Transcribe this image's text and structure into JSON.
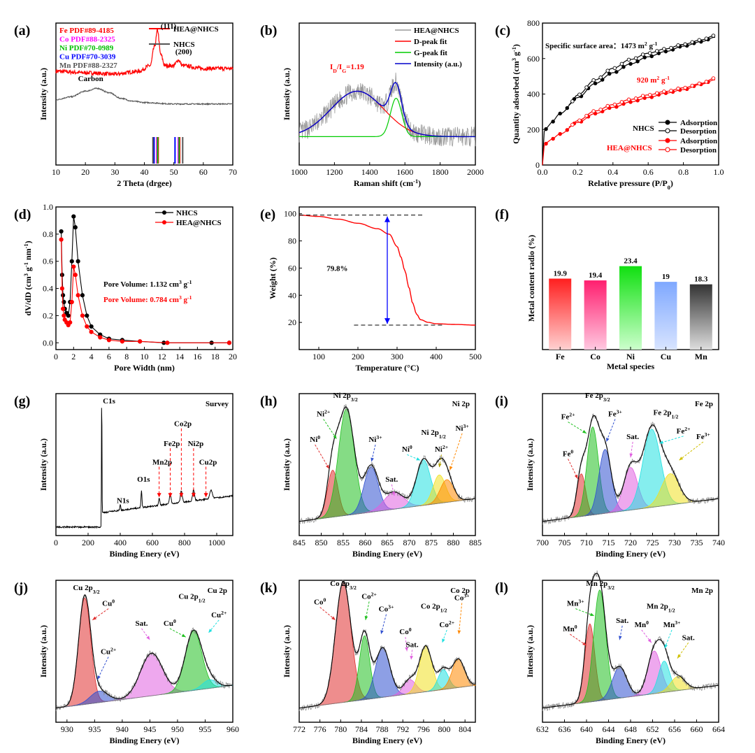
{
  "chart_data": [
    {
      "id": "a",
      "type": "line",
      "panel_label": "(a)",
      "xlabel": "2 Theta (drgee)",
      "ylabel": "Intensity (a.u.)",
      "xlim": [
        10,
        70
      ],
      "xticks": [
        "10",
        "20",
        "30",
        "40",
        "50",
        "60",
        "70"
      ],
      "series": [
        {
          "name": "HEA@NHCS",
          "color": "#ff0000",
          "x": [
            10,
            20,
            30,
            38,
            42,
            43.5,
            44.5,
            45.5,
            47,
            50,
            51.5,
            53,
            60,
            70
          ],
          "y": [
            0.66,
            0.65,
            0.64,
            0.66,
            0.7,
            0.84,
            0.95,
            0.78,
            0.7,
            0.7,
            0.74,
            0.7,
            0.68,
            0.68
          ]
        },
        {
          "name": "NHCS",
          "color": "#555555",
          "x": [
            10,
            15,
            20,
            24,
            28,
            32,
            36,
            40,
            50,
            60,
            70
          ],
          "y": [
            0.46,
            0.48,
            0.52,
            0.54,
            0.51,
            0.47,
            0.45,
            0.44,
            0.43,
            0.43,
            0.43
          ]
        }
      ],
      "reference_lines": [
        {
          "label": "Fe PDF#89-4185",
          "color": "#ff0000",
          "x": [
            44.7,
            52.0
          ]
        },
        {
          "label": "Co PDF#88-2325",
          "color": "#ff00ff",
          "x": [
            44.2,
            51.5
          ]
        },
        {
          "label": "Ni PDF#70-0989",
          "color": "#00c000",
          "x": [
            44.5,
            51.8
          ]
        },
        {
          "label": "Cu PDF#70-3039",
          "color": "#0000ff",
          "x": [
            43.3,
            50.4
          ]
        },
        {
          "label": "Mn PDF#88-2327",
          "color": "#555555",
          "x": [
            42.9,
            53.0
          ]
        }
      ],
      "annotations": [
        "(111)",
        "(200)",
        "Carbon"
      ]
    },
    {
      "id": "b",
      "type": "line",
      "panel_label": "(b)",
      "xlabel": "Raman shift (cm⁻¹)",
      "ylabel": "Intensity (a.u.)",
      "xlim": [
        1000,
        2000
      ],
      "xticks": [
        "1000",
        "1200",
        "1400",
        "1600",
        "1800",
        "2000"
      ],
      "series": [
        {
          "name": "HEA@NHCS",
          "color": "#9a9a9a"
        },
        {
          "name": "D-peak fit",
          "color": "#ff0000"
        },
        {
          "name": "G-peak fit",
          "color": "#00cc00"
        },
        {
          "name": "Intensity (a.u.)",
          "color": "#0000cc"
        }
      ],
      "D_peak": {
        "center": 1330,
        "width": 150
      },
      "G_peak": {
        "center": 1550,
        "width": 32
      },
      "annotation": "I_D/I_G=1.19"
    },
    {
      "id": "c",
      "type": "line",
      "panel_label": "(c)",
      "xlabel": "Relative pressure (P/P₀)",
      "ylabel": "Quantity adsorbed (cm³ g⁻¹)",
      "xlim": [
        0,
        1.0
      ],
      "ylim": [
        0,
        800
      ],
      "xticks": [
        "0.0",
        "0.2",
        "0.4",
        "0.6",
        "0.8",
        "1.0"
      ],
      "yticks": [
        "0",
        "200",
        "400",
        "600",
        "800"
      ],
      "series": [
        {
          "name": "Adsorption",
          "group": "NHCS",
          "color": "#000000",
          "x": [
            0,
            0.01,
            0.03,
            0.05,
            0.1,
            0.2,
            0.3,
            0.4,
            0.5,
            0.6,
            0.7,
            0.8,
            0.9,
            0.98
          ],
          "y": [
            0,
            190,
            215,
            240,
            290,
            380,
            460,
            520,
            570,
            610,
            640,
            670,
            695,
            720
          ]
        },
        {
          "name": "Desorption",
          "group": "NHCS",
          "color": "#000000",
          "x": [
            0.98,
            0.9,
            0.8,
            0.7,
            0.6,
            0.5,
            0.4,
            0.3,
            0.2,
            0.15
          ],
          "y": [
            730,
            705,
            680,
            655,
            630,
            595,
            545,
            480,
            395,
            340
          ]
        },
        {
          "name": "Adsorption",
          "group": "HEA@NHCS",
          "color": "#ff0000",
          "x": [
            0,
            0.01,
            0.03,
            0.05,
            0.1,
            0.2,
            0.3,
            0.4,
            0.5,
            0.6,
            0.7,
            0.8,
            0.9,
            0.98
          ],
          "y": [
            0,
            110,
            130,
            145,
            175,
            240,
            290,
            325,
            355,
            380,
            405,
            425,
            455,
            480
          ]
        },
        {
          "name": "Desorption",
          "group": "HEA@NHCS",
          "color": "#ff0000",
          "x": [
            0.98,
            0.9,
            0.8,
            0.7,
            0.6,
            0.5,
            0.4,
            0.3,
            0.2,
            0.15
          ],
          "y": [
            490,
            460,
            435,
            415,
            395,
            370,
            340,
            305,
            250,
            215
          ]
        }
      ],
      "legend_groups": [
        "NHCS",
        "HEA@NHCS"
      ],
      "annotations": [
        "Specific surface area：1473 m² g⁻¹",
        "920 m² g⁻¹"
      ]
    },
    {
      "id": "d",
      "type": "line",
      "panel_label": "(d)",
      "xlabel": "Pore Width (nm)",
      "ylabel": "dV/dD (cm³ g⁻¹ nm⁻¹)",
      "xlim": [
        0,
        20
      ],
      "ylim": [
        -0.05,
        1.0
      ],
      "xticks": [
        "0",
        "2",
        "4",
        "6",
        "8",
        "10",
        "12",
        "14",
        "16",
        "18",
        "20"
      ],
      "yticks": [
        "0.0",
        "0.2",
        "0.4",
        "0.6",
        "0.8",
        "1.0"
      ],
      "series": [
        {
          "name": "NHCS",
          "color": "#000000",
          "x": [
            0.6,
            0.7,
            0.8,
            0.9,
            1.0,
            1.2,
            1.4,
            1.6,
            1.8,
            2.0,
            2.2,
            2.5,
            3.0,
            3.5,
            4.0,
            5.0,
            6.0,
            7.5,
            9.5,
            12.2,
            17.6,
            19.6
          ],
          "y": [
            0.82,
            0.5,
            0.35,
            0.3,
            0.25,
            0.22,
            0.2,
            0.3,
            0.6,
            0.93,
            0.85,
            0.6,
            0.35,
            0.2,
            0.12,
            0.06,
            0.03,
            0.02,
            0.01,
            0.0,
            0.0,
            0.0
          ]
        },
        {
          "name": "HEA@NHCS",
          "color": "#ff0000",
          "x": [
            0.6,
            0.7,
            0.8,
            0.9,
            1.0,
            1.2,
            1.4,
            1.6,
            1.8,
            2.0,
            2.2,
            2.5,
            3.0,
            3.5,
            4.0,
            5.0,
            6.0,
            7.5,
            9.5,
            12.6,
            19.6
          ],
          "y": [
            0.76,
            0.4,
            0.25,
            0.2,
            0.17,
            0.15,
            0.13,
            0.15,
            0.3,
            0.56,
            0.5,
            0.35,
            0.2,
            0.12,
            0.08,
            0.04,
            0.02,
            0.01,
            0.01,
            0.0,
            0.0
          ]
        }
      ],
      "annotations": [
        {
          "text": "Pore Volume: 1.132 cm³ g⁻¹",
          "color": "#000000"
        },
        {
          "text": "Pore Volume: 0.784 cm³ g⁻¹",
          "color": "#ff0000"
        }
      ]
    },
    {
      "id": "e",
      "type": "line",
      "panel_label": "(e)",
      "xlabel": "Temperature (°C)",
      "ylabel": "Weight (%)",
      "xlim": [
        50,
        500
      ],
      "ylim": [
        0,
        100
      ],
      "xticks": [
        "100",
        "200",
        "300",
        "400",
        "500"
      ],
      "yticks": [
        "20",
        "40",
        "60",
        "80",
        "100"
      ],
      "series": [
        {
          "name": "",
          "color": "#ff0000",
          "x": [
            50,
            100,
            150,
            200,
            250,
            280,
            300,
            310,
            320,
            330,
            340,
            350,
            360,
            380,
            400,
            450,
            500
          ],
          "y": [
            99,
            98,
            96,
            93,
            89,
            85,
            76,
            68,
            58,
            46,
            34,
            26,
            22,
            20,
            19,
            18.5,
            18
          ]
        }
      ],
      "annotation": "79.8%"
    },
    {
      "id": "f",
      "type": "bar",
      "panel_label": "(f)",
      "xlabel": "Metal species",
      "ylabel": "Metal content radio (%)",
      "categories": [
        "Fe",
        "Co",
        "Ni",
        "Cu",
        "Mn"
      ],
      "values": [
        19.9,
        19.4,
        23.4,
        19,
        18.3
      ],
      "value_labels": [
        "19.9",
        "19.4",
        "23.4",
        "19",
        "18.3"
      ],
      "colors": [
        [
          "#ff1f1f",
          "#ffd0d0"
        ],
        [
          "#ff1f6f",
          "#ffc8e0"
        ],
        [
          "#10e010",
          "#ccffcc"
        ],
        [
          "#7fa8ff",
          "#d8e4ff"
        ],
        [
          "#333333",
          "#dddddd"
        ]
      ],
      "ylim": [
        0,
        40
      ]
    },
    {
      "id": "g",
      "type": "line",
      "panel_label": "(g)",
      "xlabel": "Binding Enery (eV)",
      "ylabel": "Intensity (a.u.)",
      "title": "Survey",
      "xlim": [
        0,
        1100
      ],
      "xticks": [
        "0",
        "200",
        "400",
        "600",
        "800",
        "1000"
      ],
      "series": [
        {
          "name": "",
          "color": "#000000"
        }
      ],
      "peaks": [
        {
          "label": "C1s",
          "x": 284.8
        },
        {
          "label": "N1s",
          "x": 400
        },
        {
          "label": "O1s",
          "x": 532
        },
        {
          "label": "Mn2p",
          "x": 642
        },
        {
          "label": "Fe2p",
          "x": 711
        },
        {
          "label": "Co2p",
          "x": 780
        },
        {
          "label": "Ni2p",
          "x": 856
        },
        {
          "label": "Cu2p",
          "x": 933
        }
      ]
    },
    {
      "id": "h",
      "type": "line",
      "panel_label": "(h)",
      "xlabel": "Binding Enery (eV)",
      "ylabel": "Intensity (a.u.)",
      "title": "Ni 2p",
      "xlim": [
        845,
        885
      ],
      "xticks": [
        "845",
        "850",
        "855",
        "860",
        "865",
        "870",
        "875",
        "880",
        "885"
      ],
      "fit_peaks": [
        {
          "center": 852.6,
          "amp": 0.33,
          "width": 1.2,
          "color": "#e03030"
        },
        {
          "center": 855.7,
          "amp": 0.75,
          "width": 1.8,
          "color": "#20c020"
        },
        {
          "center": 861.3,
          "amp": 0.32,
          "width": 1.6,
          "color": "#3050d0"
        },
        {
          "center": 866.5,
          "amp": 0.12,
          "width": 2.2,
          "color": "#e060e0"
        },
        {
          "center": 873.2,
          "amp": 0.32,
          "width": 1.6,
          "color": "#20e0e0"
        },
        {
          "center": 876.8,
          "amp": 0.2,
          "width": 1.4,
          "color": "#f0e020"
        },
        {
          "center": 878.5,
          "amp": 0.16,
          "width": 1.5,
          "color": "#ff8800"
        }
      ],
      "labels": [
        "Ni 2p3/2",
        "Ni2+",
        "Ni0",
        "Ni3+",
        "Sat.",
        "Ni 2p1/2",
        "Ni0",
        "Ni2+",
        "Ni3+"
      ]
    },
    {
      "id": "i",
      "type": "line",
      "panel_label": "(i)",
      "xlabel": "Binding Enery (eV)",
      "ylabel": "Intensity (a.u.)",
      "title": "Fe 2p",
      "xlim": [
        700,
        740
      ],
      "xticks": [
        "700",
        "705",
        "710",
        "715",
        "720",
        "725",
        "730",
        "735",
        "740"
      ],
      "fit_peaks": [
        {
          "center": 708.8,
          "amp": 0.3,
          "width": 1.0,
          "color": "#e03030"
        },
        {
          "center": 711.4,
          "amp": 0.62,
          "width": 1.3,
          "color": "#20c020"
        },
        {
          "center": 714.2,
          "amp": 0.45,
          "width": 1.4,
          "color": "#3050d0"
        },
        {
          "center": 720.0,
          "amp": 0.3,
          "width": 1.6,
          "color": "#e060e0"
        },
        {
          "center": 724.8,
          "amp": 0.55,
          "width": 2.0,
          "color": "#20e0e0"
        },
        {
          "center": 729.0,
          "amp": 0.22,
          "width": 2.0,
          "color": "#f0e020"
        }
      ],
      "labels": [
        "Fe 2p3/2",
        "Fe2+",
        "Fe3+",
        "Fe0",
        "Sat.",
        "Fe 2p1/2",
        "Fe2+",
        "Fe3+"
      ]
    },
    {
      "id": "j",
      "type": "line",
      "panel_label": "(j)",
      "xlabel": "Binding Enery (eV)",
      "ylabel": "Intensity (a.u.)",
      "title": "Cu 2p",
      "xlim": [
        928,
        960
      ],
      "xticks": [
        "930",
        "935",
        "940",
        "945",
        "950",
        "955",
        "960"
      ],
      "fit_peaks": [
        {
          "center": 933.2,
          "amp": 0.75,
          "width": 1.1,
          "color": "#e03030"
        },
        {
          "center": 935.8,
          "amp": 0.08,
          "width": 1.6,
          "color": "#3050d0"
        },
        {
          "center": 945.3,
          "amp": 0.3,
          "width": 2.0,
          "color": "#e060e0"
        },
        {
          "center": 952.9,
          "amp": 0.42,
          "width": 1.5,
          "color": "#20c020"
        },
        {
          "center": 955.8,
          "amp": 0.06,
          "width": 1.3,
          "color": "#20e0e0"
        }
      ],
      "labels": [
        "Cu 2p3/2",
        "Cu0",
        "Cu2+",
        "Sat.",
        "Cu0",
        "Cu 2p1/2",
        "Cu2+"
      ]
    },
    {
      "id": "k",
      "type": "line",
      "panel_label": "(k)",
      "xlabel": "Binding Enery (eV)",
      "ylabel": "Intensity (a.u.)",
      "title": "Co 2p",
      "xlim": [
        772,
        806
      ],
      "xticks": [
        "772",
        "776",
        "780",
        "784",
        "788",
        "792",
        "796",
        "800",
        "804"
      ],
      "fit_peaks": [
        {
          "center": 780.5,
          "amp": 0.85,
          "width": 1.5,
          "color": "#e03030"
        },
        {
          "center": 784.6,
          "amp": 0.45,
          "width": 1.0,
          "color": "#20c020"
        },
        {
          "center": 788.1,
          "amp": 0.35,
          "width": 1.4,
          "color": "#3050d0"
        },
        {
          "center": 793.3,
          "amp": 0.1,
          "width": 1.2,
          "color": "#e060e0"
        },
        {
          "center": 796.4,
          "amp": 0.32,
          "width": 1.2,
          "color": "#f0e020"
        },
        {
          "center": 799.8,
          "amp": 0.14,
          "width": 1.0,
          "color": "#20e0e0"
        },
        {
          "center": 802.7,
          "amp": 0.2,
          "width": 1.2,
          "color": "#ff8800"
        }
      ],
      "labels": [
        "Co 2p3/2",
        "Co0",
        "Co2+",
        "Co3+",
        "Co0",
        "Sat.",
        "Co 2p1/2",
        "Co2+",
        "Co3+"
      ]
    },
    {
      "id": "l",
      "type": "line",
      "panel_label": "(l)",
      "xlabel": "Binding Enery (eV)",
      "ylabel": "Intensity (a.u.)",
      "title": "Mn 2p",
      "xlim": [
        632,
        664
      ],
      "xticks": [
        "632",
        "636",
        "640",
        "644",
        "648",
        "652",
        "656",
        "660",
        "664"
      ],
      "fit_peaks": [
        {
          "center": 640.6,
          "amp": 0.55,
          "width": 0.9,
          "color": "#e03030"
        },
        {
          "center": 642.4,
          "amp": 0.78,
          "width": 1.1,
          "color": "#20c020"
        },
        {
          "center": 646.0,
          "amp": 0.22,
          "width": 1.3,
          "color": "#3050d0"
        },
        {
          "center": 652.3,
          "amp": 0.3,
          "width": 1.2,
          "color": "#e060e0"
        },
        {
          "center": 654.1,
          "amp": 0.22,
          "width": 1.0,
          "color": "#20e0e0"
        },
        {
          "center": 656.6,
          "amp": 0.1,
          "width": 1.3,
          "color": "#f0e020"
        }
      ],
      "labels": [
        "Mn 2p3/2",
        "Mn3+",
        "Mn0",
        "Sat.",
        "Mn 2p1/2",
        "Mn0",
        "Mn3+",
        "Sat."
      ]
    }
  ]
}
